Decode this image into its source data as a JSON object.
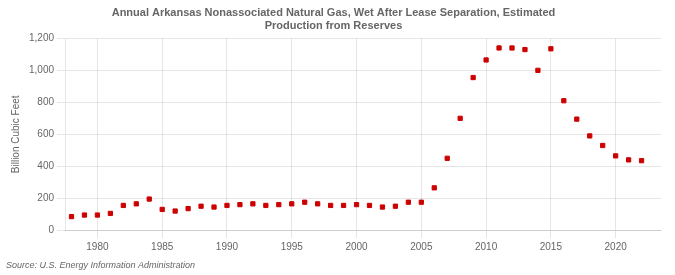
{
  "chart_data": {
    "type": "scatter",
    "title": "Annual Arkansas Nonassociated Natural Gas, Wet After Lease Separation, Estimated\nProduction from Reserves",
    "ylabel": "Billion Cubic Feet",
    "source": "Source: U.S. Energy Information Administration",
    "x": [
      1978,
      1979,
      1980,
      1981,
      1982,
      1983,
      1984,
      1985,
      1986,
      1987,
      1988,
      1989,
      1990,
      1991,
      1992,
      1993,
      1994,
      1995,
      1996,
      1997,
      1998,
      1999,
      2000,
      2001,
      2002,
      2003,
      2004,
      2005,
      2006,
      2007,
      2008,
      2009,
      2010,
      2011,
      2012,
      2013,
      2014,
      2015,
      2016,
      2017,
      2018,
      2019,
      2020,
      2021,
      2022
    ],
    "values": [
      85,
      95,
      95,
      105,
      155,
      165,
      195,
      130,
      120,
      135,
      150,
      145,
      155,
      160,
      165,
      155,
      160,
      165,
      175,
      165,
      155,
      155,
      160,
      155,
      145,
      150,
      175,
      175,
      265,
      450,
      700,
      955,
      1065,
      1140,
      1140,
      1130,
      1000,
      1135,
      810,
      695,
      590,
      530,
      465,
      440,
      435
    ],
    "color": "#cc0000",
    "marker": "square",
    "xlim": [
      1977.5,
      2023.5
    ],
    "xticks": [
      1980,
      1985,
      1990,
      1995,
      2000,
      2005,
      2010,
      2015,
      2020
    ],
    "ylim": [
      0,
      1200
    ],
    "yticks": [
      0,
      200,
      400,
      600,
      800,
      {
        "value": 1000,
        "label": "1,000"
      },
      {
        "value": 1200,
        "label": "1,200"
      }
    ],
    "grid": true
  }
}
